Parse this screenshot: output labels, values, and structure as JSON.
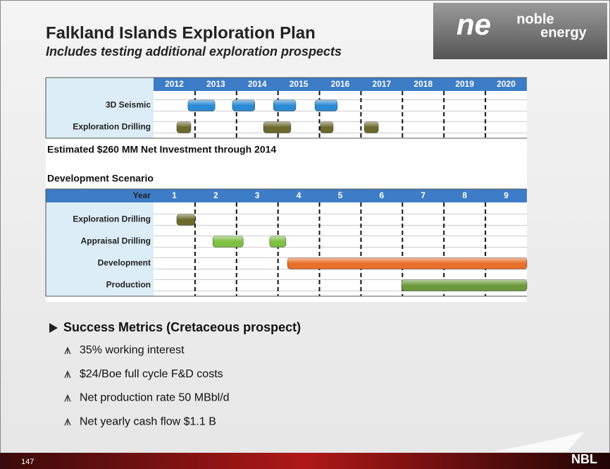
{
  "header": {
    "title": "Falkland Islands Exploration Plan",
    "subtitle": "Includes testing additional exploration prospects",
    "logo": {
      "mark": "ne",
      "line1": "noble",
      "line2": "energy"
    }
  },
  "plan": {
    "columns": [
      "2012",
      "2013",
      "2014",
      "2015",
      "2016",
      "2017",
      "2018",
      "2019",
      "2020"
    ],
    "rows": [
      {
        "label": "3D Seismic",
        "color": "#2b8ad3",
        "bars": [
          {
            "start": 0.83,
            "end": 1.48
          },
          {
            "start": 1.9,
            "end": 2.44
          },
          {
            "start": 2.89,
            "end": 3.43
          },
          {
            "start": 3.89,
            "end": 4.43
          }
        ]
      },
      {
        "label": "Exploration Drilling",
        "color": "#6b6a2c",
        "bars": [
          {
            "start": 0.56,
            "end": 0.9
          },
          {
            "start": 2.65,
            "end": 3.31
          },
          {
            "start": 4.02,
            "end": 4.33
          },
          {
            "start": 5.08,
            "end": 5.42
          }
        ]
      }
    ]
  },
  "investment_note": "Estimated $260 MM Net Investment through 2014",
  "scenario": {
    "title": "Development Scenario",
    "header": "Year",
    "columns": [
      "1",
      "2",
      "3",
      "4",
      "5",
      "6",
      "7",
      "8",
      "9"
    ],
    "rows": [
      {
        "label": "Exploration Drilling",
        "color": "#6b6a2c",
        "bars": [
          {
            "start": 0.56,
            "end": 1.0
          }
        ]
      },
      {
        "label": "Appraisal Drilling",
        "color": "#7dc143",
        "bars": [
          {
            "start": 1.43,
            "end": 2.16
          },
          {
            "start": 2.8,
            "end": 3.19
          }
        ]
      },
      {
        "label": "Development",
        "color": "#e8702a",
        "bars": [
          {
            "start": 3.23,
            "end": 9
          }
        ]
      },
      {
        "label": "Production",
        "color": "#6c9a3b",
        "bars": [
          {
            "start": 5.98,
            "end": 9
          }
        ]
      }
    ]
  },
  "metrics": {
    "title": "Success Metrics (Cretaceous prospect)",
    "items": [
      "35% working interest",
      "$24/Boe full cycle F&D costs",
      "Net production rate 50 MBbl/d",
      "Net yearly cash flow $1.1 B"
    ]
  },
  "footer": {
    "page": "147",
    "brand": "NBL"
  }
}
